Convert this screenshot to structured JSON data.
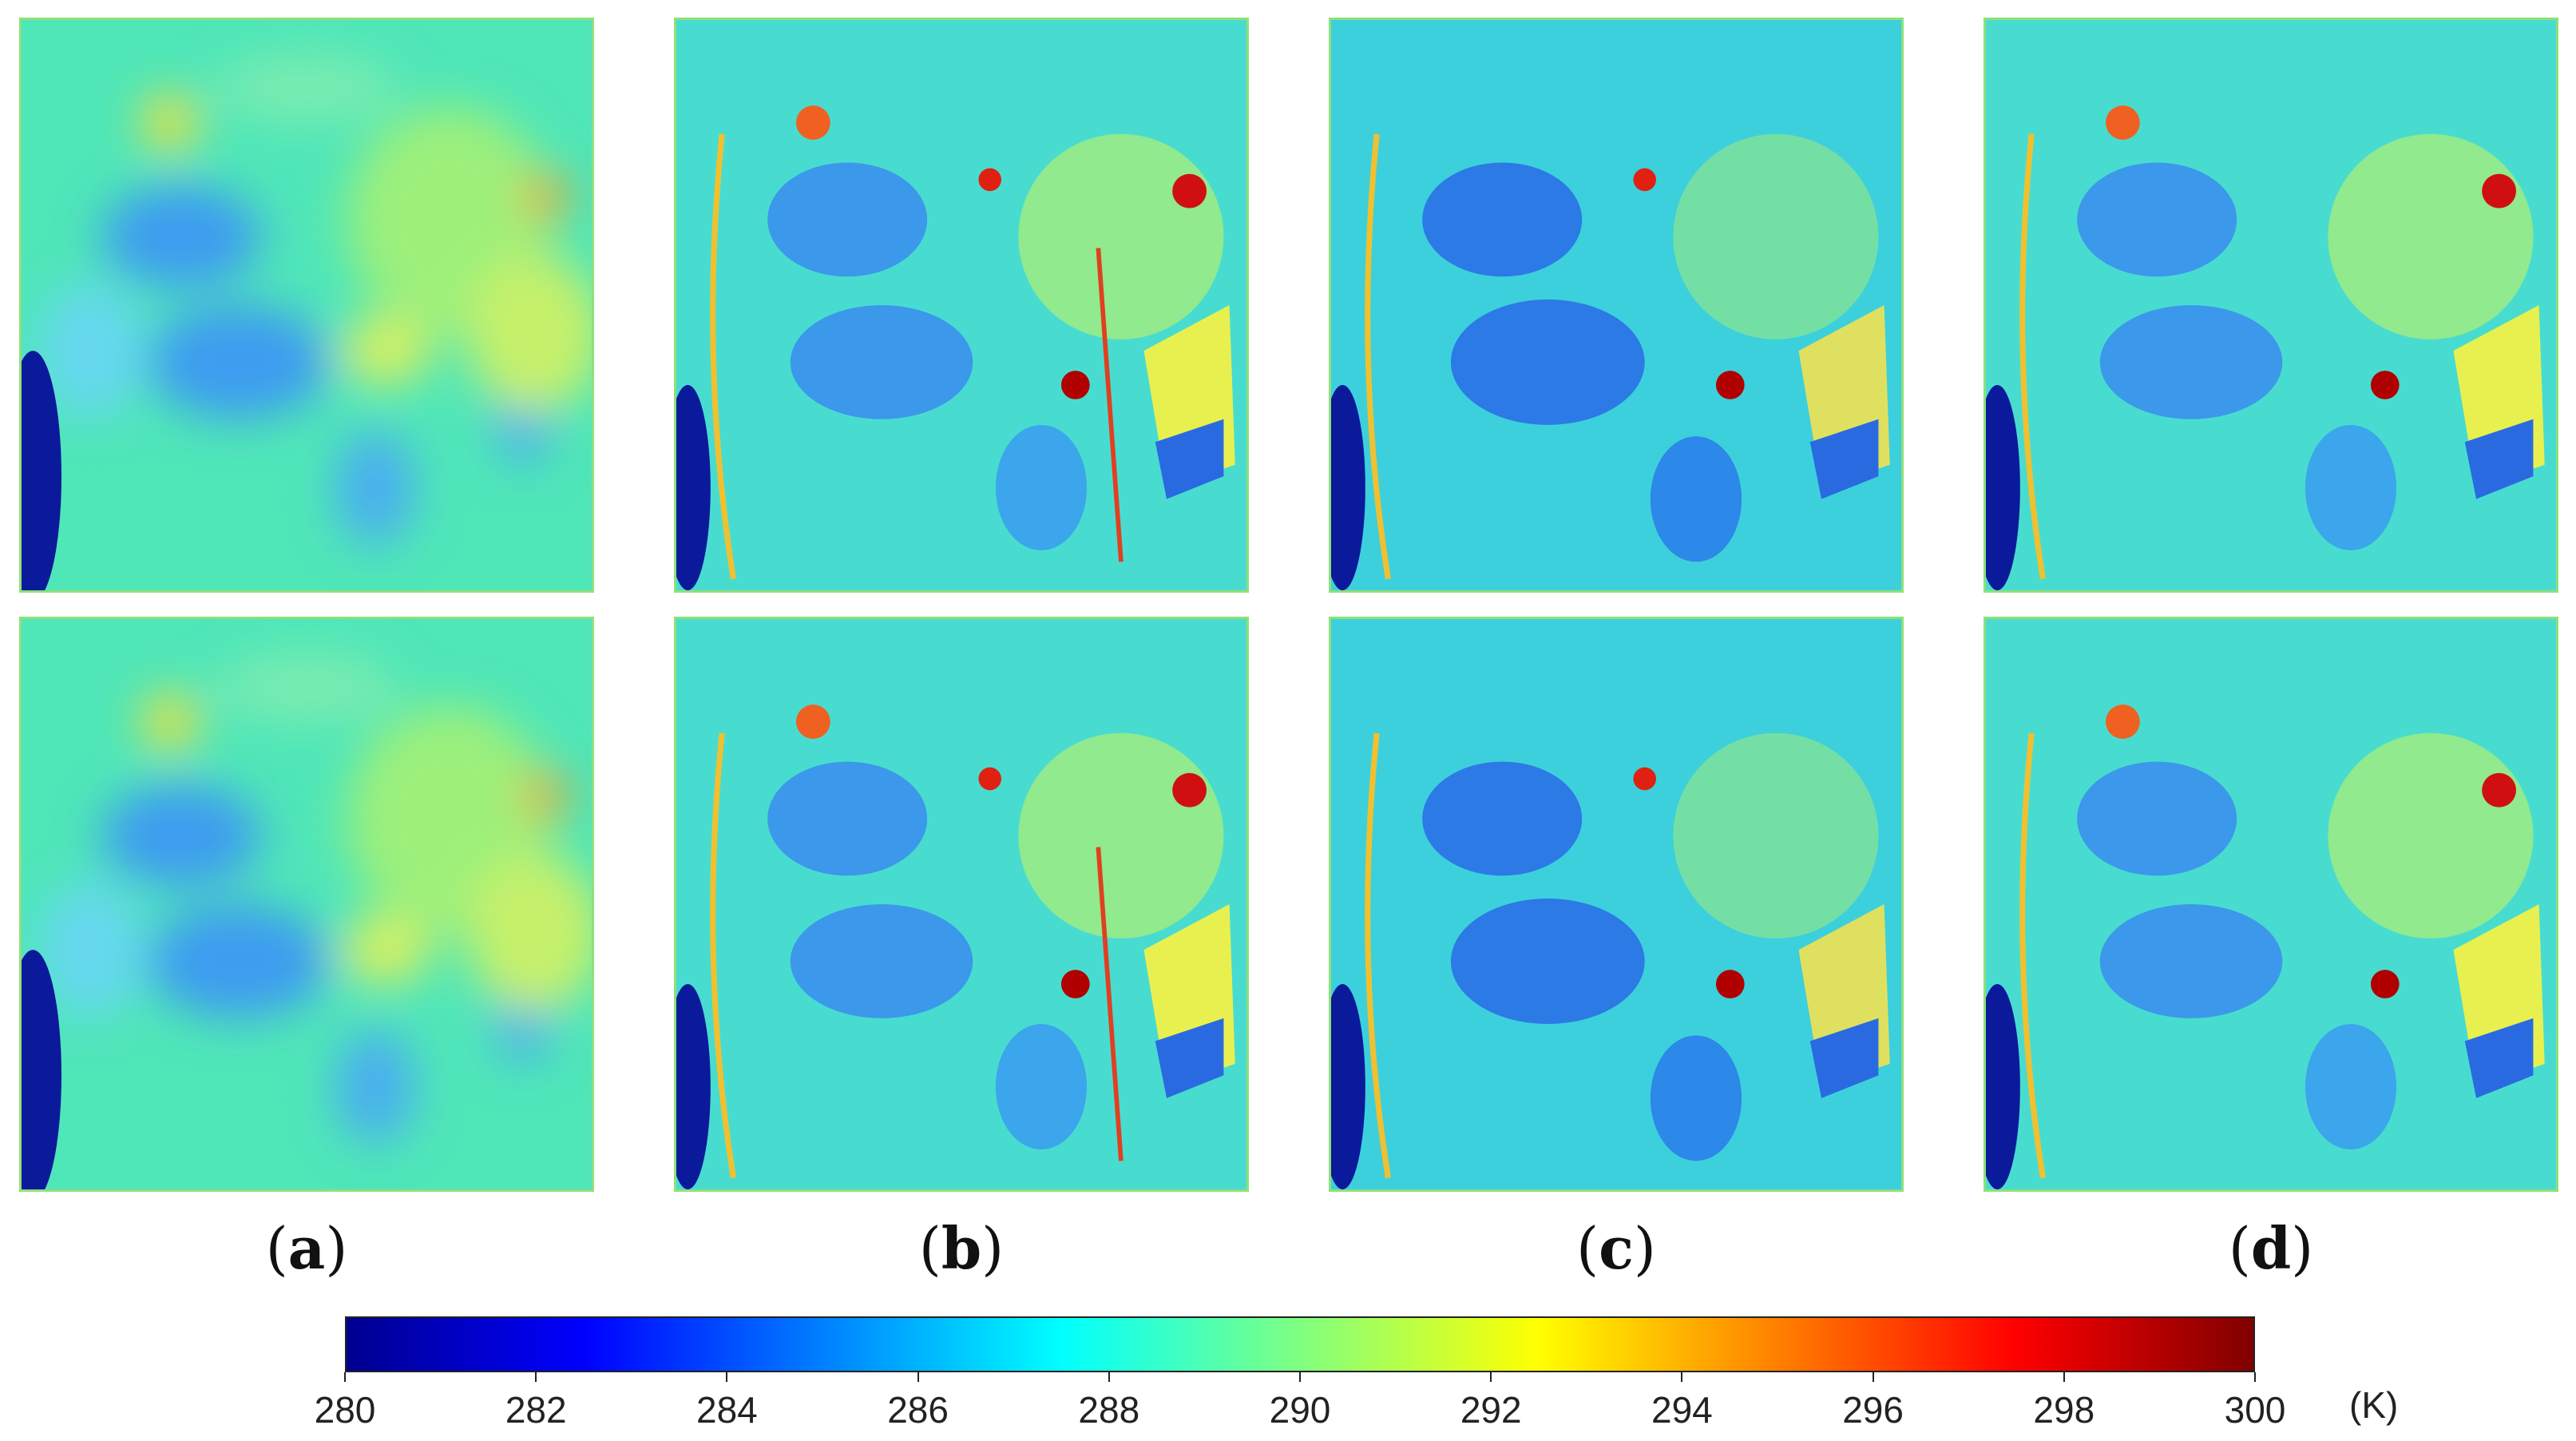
{
  "figure": {
    "columns": [
      {
        "id": "a",
        "label": "a",
        "kind": "coarse"
      },
      {
        "id": "b",
        "label": "b",
        "kind": "fine"
      },
      {
        "id": "c",
        "label": "c",
        "kind": "fine-dark"
      },
      {
        "id": "d",
        "label": "d",
        "kind": "fine"
      }
    ],
    "rows": 2
  },
  "colorbar": {
    "min": 280,
    "max": 300,
    "ticks": [
      "280",
      "282",
      "284",
      "286",
      "288",
      "290",
      "292",
      "294",
      "296",
      "298",
      "300"
    ],
    "unit": "(K)",
    "colors": [
      "#00008f",
      "#0000ff",
      "#0080ff",
      "#00ffff",
      "#80ff80",
      "#ffff00",
      "#ff8000",
      "#ff0000",
      "#800000"
    ]
  }
}
